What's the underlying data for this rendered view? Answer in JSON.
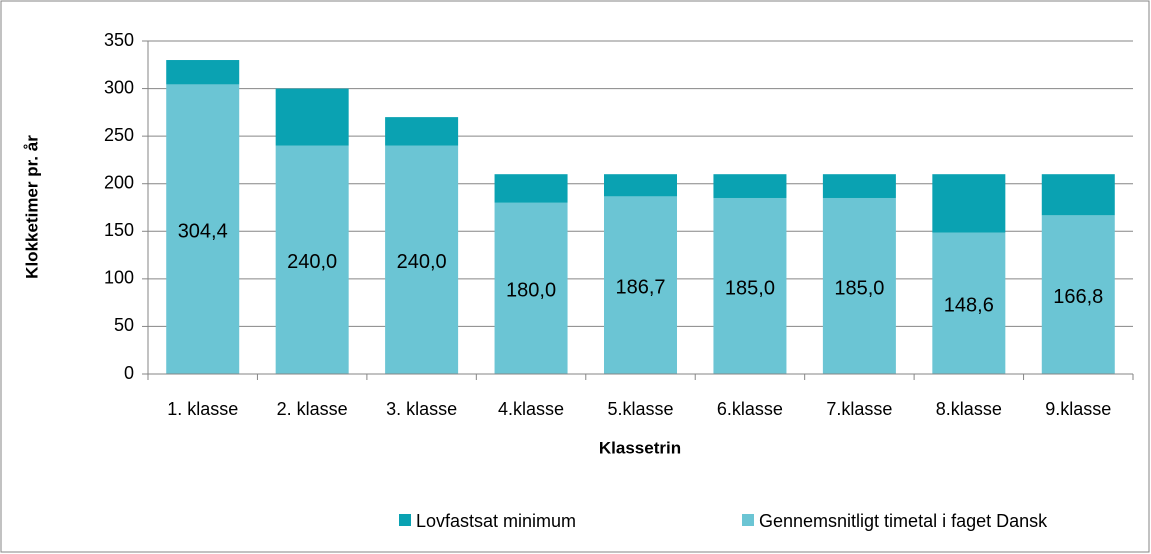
{
  "chart_data": {
    "type": "stacked_bar",
    "x_label": "Klassetrin",
    "y_label": "Klokketimer pr. år",
    "categories": [
      "1. klasse",
      "2. klasse",
      "3. klasse",
      "4.klasse",
      "5.klasse",
      "6.klasse",
      "7.klasse",
      "8.klasse",
      "9.klasse"
    ],
    "series": [
      {
        "name": "Gennemsnitligt timetal i faget Dansk",
        "color": "#6bc5d4",
        "values": [
          304.4,
          240.0,
          240.0,
          180.0,
          186.7,
          185.0,
          185.0,
          148.6,
          166.8
        ],
        "value_labels": [
          "304,4",
          "240,0",
          "240,0",
          "180,0",
          "186,7",
          "185,0",
          "185,0",
          "148,6",
          "166,8"
        ]
      },
      {
        "name": "Lovfastsat minimum",
        "color": "#0aa2b2",
        "values": [
          25.6,
          60,
          30,
          30,
          23.3,
          25,
          25,
          61.4,
          43.2
        ]
      }
    ],
    "ylim": [
      0,
      350
    ],
    "yticks": [
      0,
      50,
      100,
      150,
      200,
      250,
      300,
      350
    ],
    "grid": true,
    "legend": "bottom"
  }
}
